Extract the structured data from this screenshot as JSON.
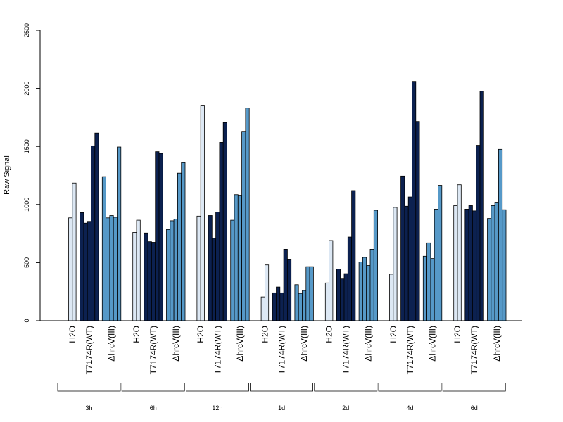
{
  "chart_data": {
    "type": "bar",
    "title": "",
    "xlabel": "",
    "ylabel": "Raw Signal",
    "ylim": [
      0,
      2500
    ],
    "yticks": [
      0,
      500,
      1000,
      1500,
      2000,
      2500
    ],
    "grid": false,
    "legend": "none",
    "bar_fill": {
      "H2O": "#dde8f4",
      "T7174R(WT)": "#0c2150",
      "ΔhrcV(III)": "#5699c8"
    },
    "groups": [
      {
        "label": "3h",
        "categories": [
          {
            "label": "H2O",
            "values": [
              885,
              1185
            ]
          },
          {
            "label": "T7174R(WT)",
            "values": [
              930,
              840,
              855,
              1505,
              1615
            ]
          },
          {
            "label": "ΔhrcV(III)",
            "values": [
              1240,
              885,
              905,
              890,
              1495
            ]
          }
        ]
      },
      {
        "label": "6h",
        "categories": [
          {
            "label": "H2O",
            "values": [
              760,
              865
            ]
          },
          {
            "label": "T7174R(WT)",
            "values": [
              755,
              680,
              675,
              1455,
              1440
            ]
          },
          {
            "label": "ΔhrcV(III)",
            "values": [
              785,
              860,
              875,
              1270,
              1360
            ]
          }
        ]
      },
      {
        "label": "12h",
        "categories": [
          {
            "label": "H2O",
            "values": [
              900,
              1855
            ]
          },
          {
            "label": "T7174R(WT)",
            "values": [
              905,
              710,
              935,
              1535,
              1705
            ]
          },
          {
            "label": "ΔhrcV(III)",
            "values": [
              865,
              1085,
              1080,
              1630,
              1830
            ]
          }
        ]
      },
      {
        "label": "1d",
        "categories": [
          {
            "label": "H2O",
            "values": [
              205,
              480
            ]
          },
          {
            "label": "T7174R(WT)",
            "values": [
              240,
              290,
              240,
              615,
              530
            ]
          },
          {
            "label": "ΔhrcV(III)",
            "values": [
              310,
              235,
              260,
              465,
              465
            ]
          }
        ]
      },
      {
        "label": "2d",
        "categories": [
          {
            "label": "H2O",
            "values": [
              325,
              690
            ]
          },
          {
            "label": "T7174R(WT)",
            "values": [
              445,
              365,
              405,
              720,
              1120
            ]
          },
          {
            "label": "ΔhrcV(III)",
            "values": [
              505,
              545,
              475,
              615,
              950
            ]
          }
        ]
      },
      {
        "label": "4d",
        "categories": [
          {
            "label": "H2O",
            "values": [
              400,
              975
            ]
          },
          {
            "label": "T7174R(WT)",
            "values": [
              1245,
              985,
              1065,
              2060,
              1715
            ]
          },
          {
            "label": "ΔhrcV(III)",
            "values": [
              555,
              670,
              535,
              960,
              1165
            ]
          }
        ]
      },
      {
        "label": "6d",
        "categories": [
          {
            "label": "H2O",
            "values": [
              990,
              1170
            ]
          },
          {
            "label": "T7174R(WT)",
            "values": [
              960,
              990,
              945,
              1510,
              1975
            ]
          },
          {
            "label": "ΔhrcV(III)",
            "values": [
              880,
              990,
              1020,
              1475,
              955
            ]
          }
        ]
      }
    ]
  }
}
